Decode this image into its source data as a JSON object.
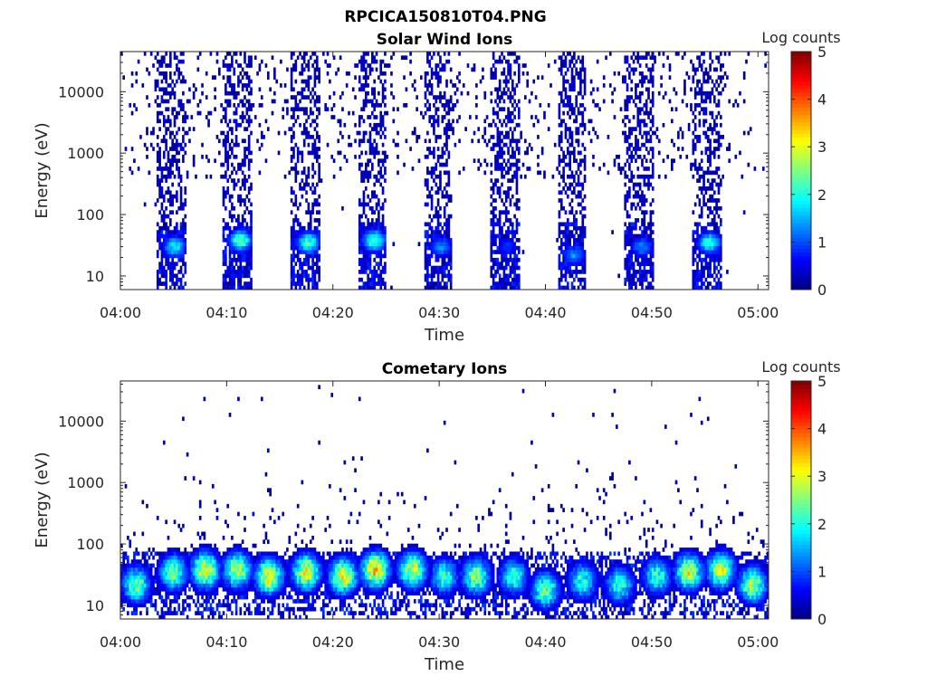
{
  "figure_title": "RPCICA150810T04.PNG",
  "chart_data": [
    {
      "type": "heatmap",
      "title": "Solar Wind Ions",
      "xlabel": "Time",
      "ylabel": "Energy (eV)",
      "x_ticks": [
        "04:00",
        "04:10",
        "04:20",
        "04:30",
        "04:40",
        "04:50",
        "05:00"
      ],
      "y_ticks": [
        "10",
        "100",
        "1000",
        "10000"
      ],
      "y_scale": "log",
      "ylim": [
        6,
        45000
      ],
      "xlim": [
        "04:00",
        "05:01"
      ],
      "colorbar": {
        "label": "Log counts",
        "ticks": [
          "0",
          "1",
          "2",
          "3",
          "4",
          "5"
        ],
        "range": [
          0,
          5
        ],
        "colormap": "jet"
      },
      "scan_bursts": [
        {
          "start": "04:03.5",
          "end": "04:06.2",
          "low_energy_peak_eV": 30,
          "peak_log_counts": 2.2
        },
        {
          "start": "04:09.7",
          "end": "04:12.4",
          "low_energy_peak_eV": 38,
          "peak_log_counts": 2.8
        },
        {
          "start": "04:16.0",
          "end": "04:18.8",
          "low_energy_peak_eV": 35,
          "peak_log_counts": 2.6
        },
        {
          "start": "04:22.3",
          "end": "04:25.0",
          "low_energy_peak_eV": 38,
          "peak_log_counts": 2.8
        },
        {
          "start": "04:28.6",
          "end": "04:31.2",
          "low_energy_peak_eV": 30,
          "peak_log_counts": 1.6
        },
        {
          "start": "04:34.9",
          "end": "04:37.5",
          "low_energy_peak_eV": 30,
          "peak_log_counts": 1.0
        },
        {
          "start": "04:41.2",
          "end": "04:43.8",
          "low_energy_peak_eV": 22,
          "peak_log_counts": 1.6
        },
        {
          "start": "04:47.5",
          "end": "04:50.1",
          "low_energy_peak_eV": 30,
          "peak_log_counts": 1.5
        },
        {
          "start": "04:53.8",
          "end": "04:56.5",
          "low_energy_peak_eV": 35,
          "peak_log_counts": 2.5
        }
      ]
    },
    {
      "type": "heatmap",
      "title": "Cometary Ions",
      "xlabel": "Time",
      "ylabel": "Energy (eV)",
      "x_ticks": [
        "04:00",
        "04:10",
        "04:20",
        "04:30",
        "04:40",
        "04:50",
        "05:00"
      ],
      "y_ticks": [
        "10",
        "100",
        "1000",
        "10000"
      ],
      "y_scale": "log",
      "ylim": [
        6,
        45000
      ],
      "xlim": [
        "04:00",
        "05:01"
      ],
      "colorbar": {
        "label": "Log counts",
        "ticks": [
          "0",
          "1",
          "2",
          "3",
          "4",
          "5"
        ],
        "range": [
          0,
          5
        ],
        "colormap": "jet"
      },
      "band_energy_range_eV": [
        10,
        80
      ],
      "peaks": [
        {
          "time": "04:01.5",
          "energy_eV": 22,
          "log_counts": 3.0
        },
        {
          "time": "04:05.0",
          "energy_eV": 35,
          "log_counts": 3.0
        },
        {
          "time": "04:08.0",
          "energy_eV": 38,
          "log_counts": 3.8
        },
        {
          "time": "04:11.0",
          "energy_eV": 38,
          "log_counts": 3.5
        },
        {
          "time": "04:14.0",
          "energy_eV": 30,
          "log_counts": 3.8
        },
        {
          "time": "04:17.5",
          "energy_eV": 35,
          "log_counts": 3.8
        },
        {
          "time": "04:21.0",
          "energy_eV": 30,
          "log_counts": 3.8
        },
        {
          "time": "04:24.0",
          "energy_eV": 38,
          "log_counts": 4.2
        },
        {
          "time": "04:27.5",
          "energy_eV": 38,
          "log_counts": 3.6
        },
        {
          "time": "04:30.5",
          "energy_eV": 30,
          "log_counts": 2.6
        },
        {
          "time": "04:33.5",
          "energy_eV": 30,
          "log_counts": 3.2
        },
        {
          "time": "04:37.0",
          "energy_eV": 30,
          "log_counts": 2.6
        },
        {
          "time": "04:40.0",
          "energy_eV": 18,
          "log_counts": 3.0
        },
        {
          "time": "04:43.5",
          "energy_eV": 25,
          "log_counts": 2.6
        },
        {
          "time": "04:47.0",
          "energy_eV": 22,
          "log_counts": 2.6
        },
        {
          "time": "04:50.5",
          "energy_eV": 30,
          "log_counts": 2.6
        },
        {
          "time": "04:53.5",
          "energy_eV": 35,
          "log_counts": 3.6
        },
        {
          "time": "04:56.5",
          "energy_eV": 38,
          "log_counts": 3.6
        },
        {
          "time": "04:59.5",
          "energy_eV": 22,
          "log_counts": 3.4
        }
      ]
    }
  ]
}
